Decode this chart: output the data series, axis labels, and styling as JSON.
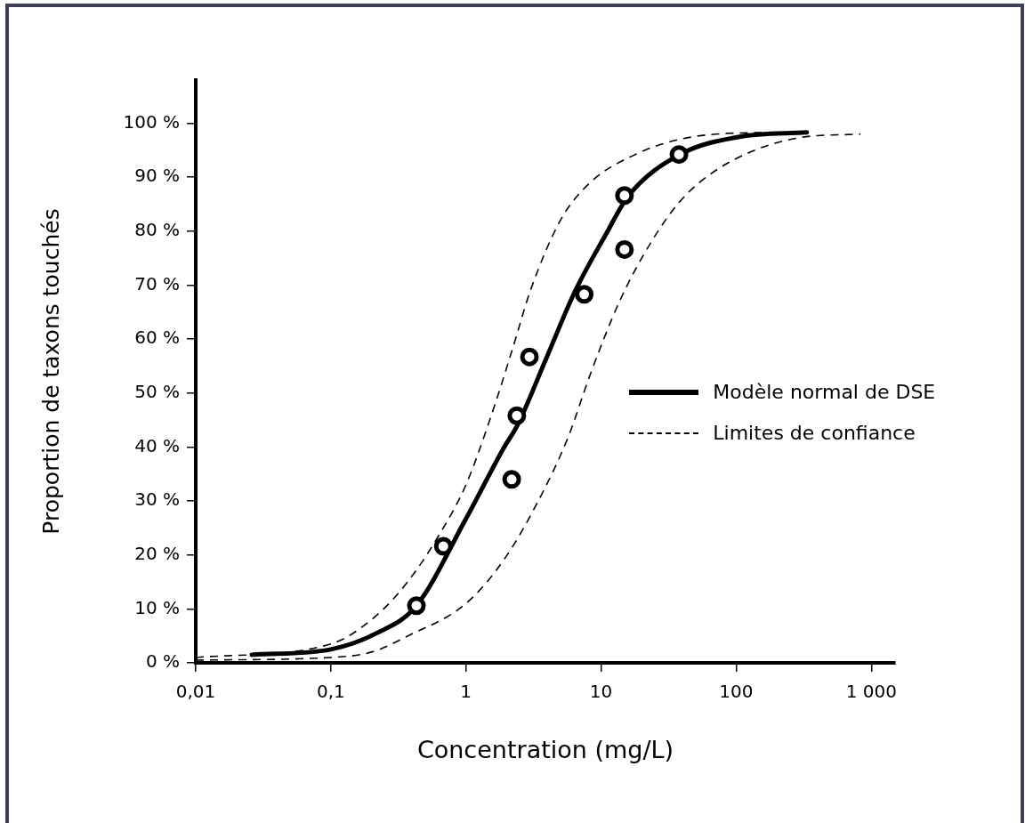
{
  "chart_data": {
    "type": "line",
    "xlabel": "Concentration (mg/L)",
    "ylabel": "Proportion de taxons touchés",
    "log": "x",
    "grid": false,
    "legend": "right",
    "xlim": [
      0.01,
      1500
    ],
    "xticks": [
      {
        "value": 0.01,
        "label": "0,01"
      },
      {
        "value": 0.1,
        "label": "0,1"
      },
      {
        "value": 1,
        "label": "1"
      },
      {
        "value": 10,
        "label": "10"
      },
      {
        "value": 100,
        "label": "100"
      },
      {
        "value": 1000,
        "label": "1 000"
      }
    ],
    "ylim": [
      0,
      108
    ],
    "yticks": [
      {
        "value": 0,
        "label": "0 %"
      },
      {
        "value": 10,
        "label": "10 %"
      },
      {
        "value": 20,
        "label": "20 %"
      },
      {
        "value": 30,
        "label": "30 %"
      },
      {
        "value": 40,
        "label": "40 %"
      },
      {
        "value": 50,
        "label": "50 %"
      },
      {
        "value": 60,
        "label": "60 %"
      },
      {
        "value": 70,
        "label": "70 %"
      },
      {
        "value": 80,
        "label": "80 %"
      },
      {
        "value": 90,
        "label": "90 %"
      },
      {
        "value": 100,
        "label": "100 %"
      }
    ],
    "series": [
      {
        "type": "scatter",
        "color": "#000000",
        "marker": "circle",
        "x": [
          0.43,
          0.68,
          2.18,
          2.38,
          2.95,
          7.5,
          14.9,
          14.9,
          37.7
        ],
        "values": [
          10.6,
          21.6,
          34.0,
          45.8,
          56.7,
          68.3,
          76.6,
          86.6,
          94.2
        ]
      },
      {
        "name": "Modèle normal de DSE",
        "color": "#000000",
        "line_style": "solid",
        "x": [
          0.026,
          0.1,
          0.218,
          0.43,
          1,
          1.92,
          2.4,
          3.88,
          6.4,
          10.8,
          16,
          38.3,
          106,
          333
        ],
        "values": [
          1.5,
          2.5,
          5.5,
          10.6,
          26.7,
          40.0,
          44.0,
          56.1,
          68.8,
          79.3,
          86.6,
          94.2,
          97.5,
          98.3
        ]
      },
      {
        "name": "Limites de confiance",
        "color": "#000000",
        "line_style": "dashed",
        "x": [
          0.01,
          0.1,
          0.218,
          0.378,
          0.65,
          1,
          1.5,
          2.2,
          3.0,
          5.0,
          8.3,
          17.9,
          38,
          106,
          333
        ],
        "values": [
          1.0,
          3.5,
          8.8,
          15.3,
          24.2,
          33.0,
          45.0,
          58.0,
          69.0,
          82.0,
          89.0,
          94.2,
          97.0,
          98.2,
          98.3
        ]
      },
      {
        "color": "#000000",
        "line_style": "dashed",
        "x": [
          0.01,
          0.1,
          0.2,
          0.38,
          1,
          1.92,
          3.33,
          5.7,
          8.3,
          13.7,
          23,
          38,
          63,
          134,
          290,
          830
        ],
        "values": [
          0.5,
          1.0,
          2.0,
          5.1,
          11.0,
          19.2,
          29.4,
          41.8,
          53.4,
          67.0,
          77.6,
          85.4,
          90.4,
          94.9,
          97.3,
          98.0
        ]
      }
    ]
  }
}
